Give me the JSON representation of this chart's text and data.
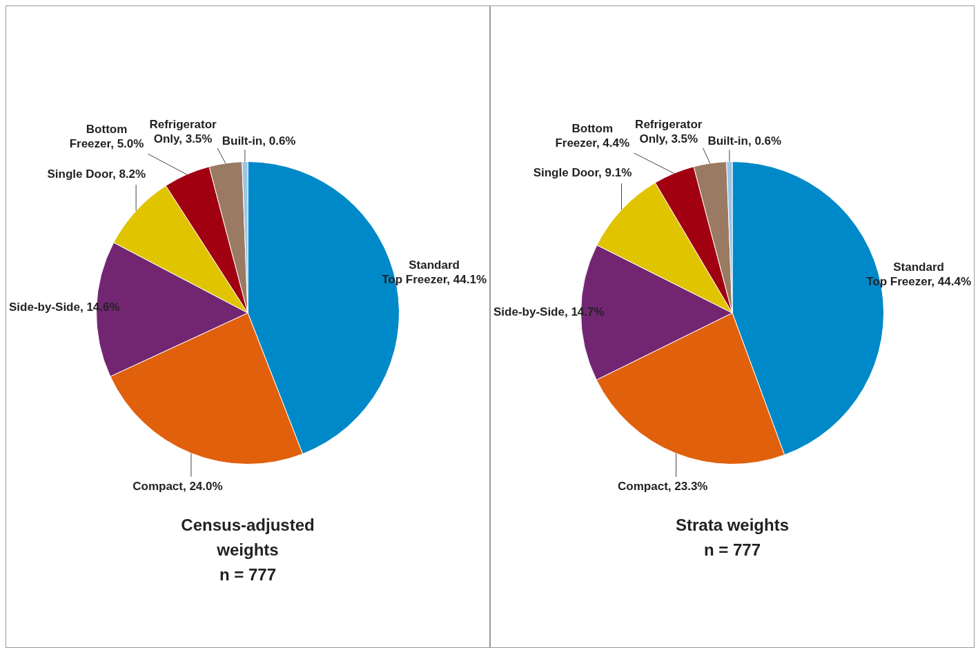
{
  "chart_data": [
    {
      "type": "pie",
      "title": "Census-adjusted weights",
      "subtitle": "n = 777",
      "categories": [
        "Standard Top Freezer",
        "Compact",
        "Side-by-Side",
        "Single Door",
        "Bottom Freezer",
        "Refrigerator Only",
        "Built-in"
      ],
      "values": [
        44.1,
        24.0,
        14.6,
        8.2,
        5.0,
        3.5,
        0.6
      ],
      "value_labels": [
        "44.1%",
        "24.0%",
        "14.6%",
        "8.2%",
        "5.0%",
        "3.5%",
        "0.6%"
      ],
      "colors": [
        "#0089c8",
        "#e0600c",
        "#722672",
        "#e0c400",
        "#a00010",
        "#9a7a62",
        "#9dc3e6"
      ],
      "legend": false
    },
    {
      "type": "pie",
      "title": "Strata weights",
      "subtitle": "n = 777",
      "categories": [
        "Standard Top Freezer",
        "Compact",
        "Side-by-Side",
        "Single Door",
        "Bottom Freezer",
        "Refrigerator Only",
        "Built-in"
      ],
      "values": [
        44.4,
        23.3,
        14.7,
        9.1,
        4.4,
        3.5,
        0.6
      ],
      "value_labels": [
        "44.4%",
        "23.3%",
        "14.7%",
        "9.1%",
        "4.4%",
        "3.5%",
        "0.6%"
      ],
      "colors": [
        "#0089c8",
        "#e0600c",
        "#722672",
        "#e0c400",
        "#a00010",
        "#9a7a62",
        "#9dc3e6"
      ],
      "legend": false
    }
  ]
}
